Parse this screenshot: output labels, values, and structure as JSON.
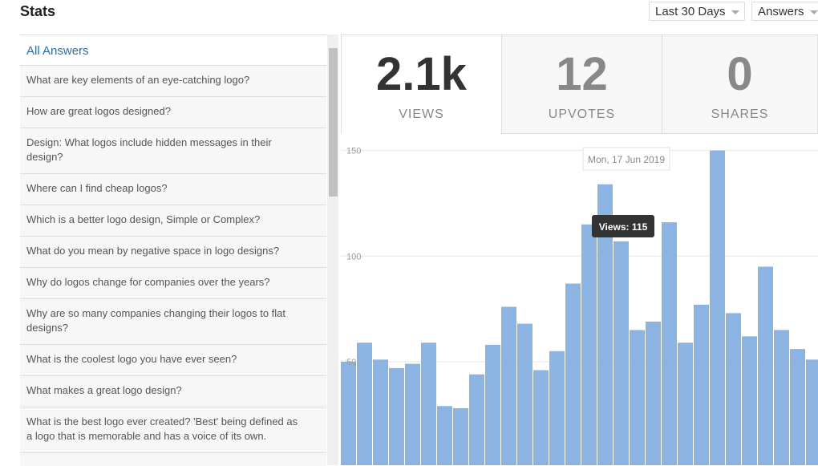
{
  "header": {
    "title": "Stats",
    "range_select": "Last 30 Days",
    "content_select": "Answers"
  },
  "list": {
    "heading": "All Answers",
    "items": [
      "What are key elements of an eye-catching logo?",
      "How are great logos designed?",
      "Design: What logos include hidden messages in their design?",
      "Where can I find cheap logos?",
      "Which is a better logo design, Simple or Complex?",
      "What do you mean by negative space in logo designs?",
      "Why do logos change for companies over the years?",
      "Why are so many companies changing their logos to flat designs?",
      "What is the coolest logo you have ever seen?",
      "What makes a great logo design?",
      "What is the best logo ever created? 'Best' being defined as a logo that is memorable and has a voice of its own."
    ]
  },
  "stats": [
    {
      "value": "2.1k",
      "label": "VIEWS"
    },
    {
      "value": 12,
      "label": "UPVOTES"
    },
    {
      "value": 0,
      "label": "SHARES"
    }
  ],
  "chart_data": {
    "type": "bar",
    "color": "#8cb4e2",
    "categories": [
      null,
      null,
      null,
      null,
      null,
      null,
      null,
      null,
      null,
      null,
      null,
      null,
      null,
      null,
      null,
      null,
      null,
      null,
      null,
      null,
      null,
      null,
      null,
      null,
      null,
      null,
      null,
      null,
      null,
      null
    ],
    "values": [
      50,
      59,
      51,
      47,
      49,
      59,
      29,
      28,
      44,
      58,
      76,
      68,
      46,
      55,
      87,
      115,
      134,
      107,
      65,
      69,
      116,
      59,
      77,
      150,
      73,
      62,
      95,
      65,
      56,
      51
    ],
    "ylim": [
      1,
      151
    ],
    "yticks": [
      50,
      100,
      150
    ],
    "grid": true,
    "tooltip": {
      "date": "Mon, 17 Jun 2019",
      "label": "Views: 115"
    }
  }
}
